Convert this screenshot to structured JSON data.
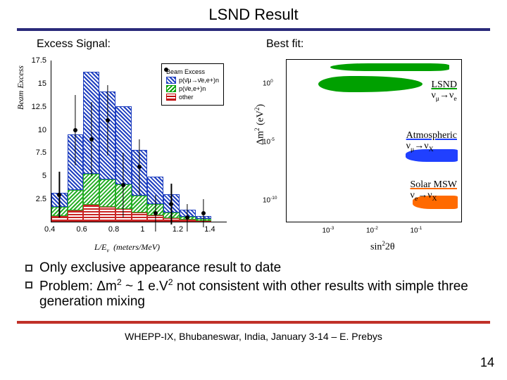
{
  "title": "LSND Result",
  "headings": {
    "left": "Excess Signal:",
    "right": "Best fit:"
  },
  "left_chart": {
    "type": "histogram_with_points",
    "xlabel": "L/Eν  (meters/MeV)",
    "ylabel": "Beam Excess",
    "xlim": [
      0.4,
      1.5
    ],
    "ylim": [
      0,
      17.5
    ],
    "xticks": [
      0.4,
      0.6,
      0.8,
      1.0,
      1.2,
      1.4
    ],
    "yticks": [
      2.5,
      5,
      7.5,
      10,
      12.5,
      15,
      17.5
    ],
    "tick_fontsize": 11,
    "label_fontsize": 12,
    "bar_width_data": 0.1,
    "bin_centers": [
      0.45,
      0.55,
      0.65,
      0.75,
      0.85,
      0.95,
      1.05,
      1.15,
      1.25,
      1.35
    ],
    "series": {
      "blue": {
        "label": "p(ν̄μ→ν̄e,e+)n",
        "color": "#2040c0",
        "values": [
          1.5,
          6.0,
          11.0,
          9.5,
          8.5,
          5.0,
          3.0,
          2.0,
          0.8,
          0.3
        ]
      },
      "green": {
        "label": "p(ν̄e,e+)n",
        "color": "#00a000",
        "values": [
          1.0,
          2.2,
          3.4,
          3.0,
          2.6,
          1.8,
          1.2,
          0.6,
          0.3,
          0.2
        ]
      },
      "red": {
        "label": "other",
        "color": "#c00000",
        "values": [
          0.6,
          1.2,
          1.8,
          1.6,
          1.4,
          1.0,
          0.7,
          0.4,
          0.2,
          0.1
        ]
      }
    },
    "data_points": {
      "label": "Beam Excess",
      "marker_color": "#000000",
      "x": [
        0.45,
        0.55,
        0.65,
        0.75,
        0.85,
        0.95,
        1.05,
        1.15,
        1.25,
        1.35
      ],
      "y": [
        3.0,
        10.0,
        9.0,
        11.0,
        4.0,
        6.0,
        1.0,
        2.0,
        0.5,
        1.0
      ],
      "yerr": [
        2.5,
        3.8,
        4.0,
        3.8,
        3.5,
        3.0,
        2.0,
        2.2,
        1.5,
        1.5
      ]
    }
  },
  "right_chart": {
    "type": "exclusion_contour",
    "xlabel": "sin²2θ",
    "ylabel": "Δm² (eV²)",
    "xlim_log10": [
      -4,
      0
    ],
    "ylim_log10": [
      -12,
      2
    ],
    "xticks_exp": [
      -3,
      -2,
      -1
    ],
    "yticks_exp": [
      -10,
      -5,
      0
    ],
    "label_fontsize": 14,
    "regions": [
      {
        "name": "lsnd_upper",
        "color": "#00a000"
      },
      {
        "name": "lsnd_lower",
        "color": "#00a000"
      },
      {
        "name": "atmospheric",
        "color": "#2040ff"
      },
      {
        "name": "solar_msw",
        "color": "#ff6a00"
      }
    ],
    "labels": {
      "lsnd": {
        "title": "LSND",
        "reaction": "νμ→νe",
        "underline_color": "#00a000"
      },
      "atm": {
        "title": "Atmospheric",
        "reaction": "νμ→νX",
        "underline_color": "#2040ff"
      },
      "solar": {
        "title": "Solar MSW",
        "reaction": "νe→νX",
        "underline_color": "#ff6a00"
      }
    }
  },
  "bullets": [
    "Only exclusive appearance result to date",
    "Problem: Δm² ~ 1 e.V² not consistent with other results with simple three generation mixing"
  ],
  "footer": "WHEPP-IX, Bhubaneswar, India, January 3-14 – E. Prebys",
  "page_number": "14",
  "colors": {
    "title_rule": "#2a2a7a",
    "accent_rule": "#c03028",
    "background": "#ffffff",
    "text": "#000000"
  }
}
